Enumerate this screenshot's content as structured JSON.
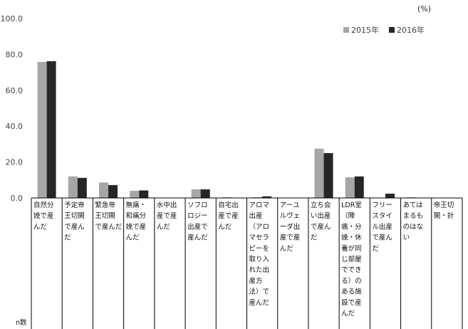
{
  "chart_data": {
    "type": "bar",
    "unit_label": "(%)",
    "ylim": [
      0,
      100
    ],
    "yticks": [
      "0.0",
      "20.0",
      "40.0",
      "60.0",
      "80.0",
      "100.0"
    ],
    "grid": false,
    "legend_position": "top-right",
    "n_label": "n数",
    "categories": [
      "自然分娩で産んだ",
      "予定帝王切開で産んだ",
      "緊急帝王切開で産んだ",
      "無痛・和痛分娩で産んだ",
      "水中出産で産んだ",
      "ソフロロジー出産で産んだ",
      "自宅出産で産んだ",
      "アロマ出産（アロマセラピーを取り入れた出産方法）で産んだ",
      "アーユルヴェーダ出産で産んだ",
      "立ち会い出産で産んだ",
      "LDR室（陣痛・分娩・休養が同じ部屋でできる）のある施設で産んだ",
      "フリースタイル出産で産んだ",
      "あてはまるものはない",
      "帝王切開・計"
    ],
    "category_lines": [
      [
        "自然分",
        "娩で産",
        "んだ"
      ],
      [
        "予定帝",
        "王切開",
        "で産ん",
        "だ"
      ],
      [
        "緊急帝",
        "王切開",
        "で産んだ"
      ],
      [
        "無痛・",
        "和痛分",
        "娩で産",
        "んだ"
      ],
      [
        "水中出",
        "産で産",
        "んだ"
      ],
      [
        "ソフロ",
        "ロジー",
        "出産で",
        "産んだ"
      ],
      [
        "自宅出",
        "産で産",
        "んだ"
      ],
      [
        "アロマ",
        "出産",
        "（アロ",
        "マセラ",
        "ピーを",
        "取り入",
        "れた出",
        "産方",
        "法）で",
        "産んだ"
      ],
      [
        "アーユ",
        "ルヴェ",
        "ーダ出",
        "産で産",
        "んだ"
      ],
      [
        "立ち会",
        "い出産",
        "で産ん",
        "だ"
      ],
      [
        "LDR室",
        "（陣",
        "痛・分",
        "娩・休",
        "養が同",
        "じ部屋",
        "ででき",
        "る）の",
        "ある施",
        "設で産",
        "んだ"
      ],
      [
        "フリー",
        "スタイ",
        "ル出産",
        "で産ん",
        "だ"
      ],
      [
        "あては",
        "まるも",
        "のはな",
        "い"
      ],
      [
        "帝王切",
        "開・計"
      ]
    ],
    "series": [
      {
        "name": "2015年",
        "color": "#a6a6a6",
        "values": [
          75.8,
          12.0,
          8.6,
          4.0,
          0.0,
          4.8,
          0.4,
          0.5,
          0.0,
          27.5,
          11.5,
          0.0,
          0.4,
          null
        ]
      },
      {
        "name": "2016年",
        "color": "#262626",
        "values": [
          76.2,
          11.2,
          7.2,
          4.2,
          0.0,
          4.8,
          0.0,
          0.9,
          0.0,
          25.0,
          12.0,
          2.4,
          0.0,
          null
        ]
      }
    ]
  }
}
